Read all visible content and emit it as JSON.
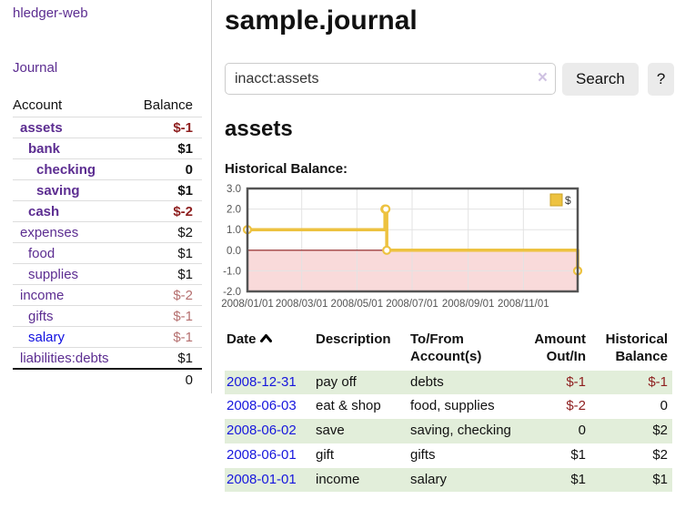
{
  "app": {
    "title": "hledger-web"
  },
  "sidebar": {
    "nav_journal": "Journal",
    "accounts_table": {
      "headers": {
        "account": "Account",
        "balance": "Balance"
      },
      "rows": [
        {
          "name": "assets",
          "level": 0,
          "bold": true,
          "balance": "$-1",
          "balance_style": "neg"
        },
        {
          "name": "bank",
          "level": 1,
          "bold": true,
          "balance": "$1",
          "balance_style": "pos"
        },
        {
          "name": "checking",
          "level": 2,
          "bold": true,
          "balance": "0",
          "balance_style": "pos"
        },
        {
          "name": "saving",
          "level": 2,
          "bold": true,
          "balance": "$1",
          "balance_style": "pos"
        },
        {
          "name": "cash",
          "level": 1,
          "bold": true,
          "balance": "$-2",
          "balance_style": "neg"
        },
        {
          "name": "expenses",
          "level": 0,
          "bold": false,
          "balance": "$2",
          "balance_style": "pos"
        },
        {
          "name": "food",
          "level": 1,
          "bold": false,
          "balance": "$1",
          "balance_style": "pos"
        },
        {
          "name": "supplies",
          "level": 1,
          "bold": false,
          "balance": "$1",
          "balance_style": "pos"
        },
        {
          "name": "income",
          "level": 0,
          "bold": false,
          "balance": "$-2",
          "balance_style": "neg-muted"
        },
        {
          "name": "gifts",
          "level": 1,
          "bold": false,
          "balance": "$-1",
          "balance_style": "neg-muted"
        },
        {
          "name": "salary",
          "level": 1,
          "bold": false,
          "balance": "$-1",
          "balance_style": "neg-muted",
          "link_style": "unvisited"
        },
        {
          "name": "liabilities:debts",
          "level": 0,
          "bold": false,
          "balance": "$1",
          "balance_style": "pos"
        }
      ],
      "total": "0"
    }
  },
  "main": {
    "title": "sample.journal",
    "search": {
      "value": "inacct:assets",
      "clear_icon": "×",
      "button_label": "Search",
      "help_label": "?"
    },
    "account_heading": "assets",
    "chart_heading": "Historical Balance:"
  },
  "chart_data": {
    "type": "line",
    "title": "Historical Balance:",
    "step": true,
    "legend": {
      "label": "$",
      "position": "top-right"
    },
    "xrange": [
      "2008-01-01",
      "2008-12-31"
    ],
    "ylim": [
      -2,
      3
    ],
    "yticks": [
      {
        "value": 3,
        "label": "3.0"
      },
      {
        "value": 2,
        "label": "2.0"
      },
      {
        "value": 1,
        "label": "1.0"
      },
      {
        "value": 0,
        "label": "0.0"
      },
      {
        "value": -1,
        "label": "-1.0"
      },
      {
        "value": -2,
        "label": "-2.0"
      }
    ],
    "xticks": [
      {
        "date": "2008-01-01",
        "label": "2008/01/01"
      },
      {
        "date": "2008-03-01",
        "label": "2008/03/01"
      },
      {
        "date": "2008-05-01",
        "label": "2008/05/01"
      },
      {
        "date": "2008-07-01",
        "label": "2008/07/01"
      },
      {
        "date": "2008-09-01",
        "label": "2008/09/01"
      },
      {
        "date": "2008-11-01",
        "label": "2008/11/01"
      }
    ],
    "series": [
      {
        "name": "$",
        "points": [
          [
            "2008-01-01",
            1
          ],
          [
            "2008-06-01",
            2
          ],
          [
            "2008-06-02",
            2
          ],
          [
            "2008-06-03",
            0
          ],
          [
            "2008-12-31",
            -1
          ]
        ]
      }
    ],
    "grid": true,
    "colors": {
      "line": "#EDC240",
      "marker_fill": "#ffffff",
      "negative_region": "#f9dada",
      "zero_line": "#8b1a1a",
      "grid_line": "#e3e3e3",
      "border": "#545454",
      "tick_text": "#545454"
    }
  },
  "transactions": {
    "headers": {
      "date": "Date",
      "description": "Description",
      "accounts": "To/From Account(s)",
      "amount": "Amount Out/In",
      "balance": "Historical Balance"
    },
    "rows": [
      {
        "date": "2008-12-31",
        "description": "pay off",
        "accounts": "debts",
        "amount": "$-1",
        "amount_style": "neg",
        "balance": "$-1",
        "balance_style": "neg"
      },
      {
        "date": "2008-06-03",
        "description": "eat & shop",
        "accounts": "food, supplies",
        "amount": "$-2",
        "amount_style": "neg",
        "balance": "0",
        "balance_style": "pos"
      },
      {
        "date": "2008-06-02",
        "description": "save",
        "accounts": "saving, checking",
        "amount": "0",
        "amount_style": "pos",
        "balance": "$2",
        "balance_style": "pos"
      },
      {
        "date": "2008-06-01",
        "description": "gift",
        "accounts": "gifts",
        "amount": "$1",
        "amount_style": "pos",
        "balance": "$2",
        "balance_style": "pos"
      },
      {
        "date": "2008-01-01",
        "description": "income",
        "accounts": "salary",
        "amount": "$1",
        "amount_style": "pos",
        "balance": "$1",
        "balance_style": "pos"
      }
    ]
  },
  "colors": {
    "link_purple": "#5c2d91",
    "link_blue": "#1717dd",
    "negative_red": "#8e1f1f",
    "negative_muted": "#b56f6f",
    "row_stripe_green": "#e2eeda",
    "chart_gold": "#EDC240"
  }
}
